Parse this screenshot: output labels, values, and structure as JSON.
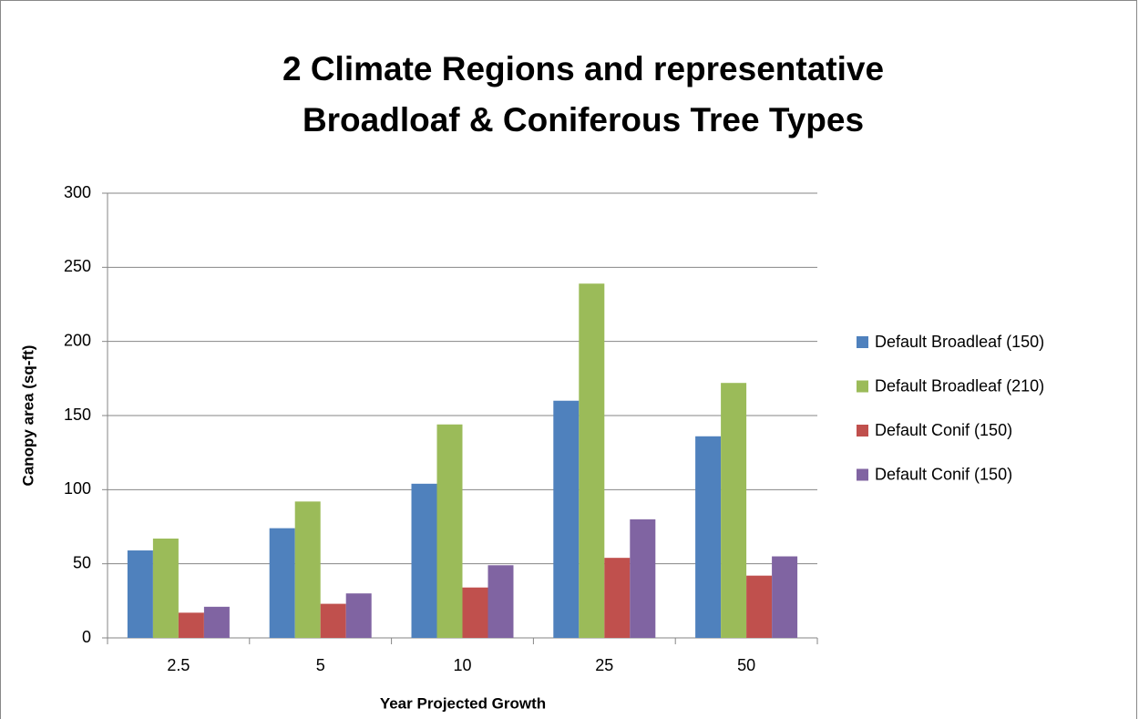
{
  "chart_data": {
    "type": "bar",
    "title": "2 Climate Regions and representative Broadloaf & Coniferous Tree Types",
    "x_label": "Year Projected Growth",
    "y_label": "Canopy area (sq-ft)",
    "categories": [
      "2.5",
      "5",
      "10",
      "25",
      "50"
    ],
    "series": [
      {
        "name": "Default Broadleaf (150)",
        "color": "#4f81bd",
        "values": [
          59,
          74,
          104,
          160,
          136
        ]
      },
      {
        "name": "Default Broadleaf (210)",
        "color": "#9bbb59",
        "values": [
          67,
          92,
          144,
          239,
          172
        ]
      },
      {
        "name": "Default Conif (150)",
        "color": "#c0504d",
        "values": [
          17,
          23,
          34,
          54,
          42
        ]
      },
      {
        "name": "Default Conif (150)",
        "color": "#8064a2",
        "values": [
          21,
          30,
          49,
          80,
          55
        ]
      }
    ],
    "ylim": [
      0,
      300
    ],
    "yticks": [
      0,
      50,
      100,
      150,
      200,
      250,
      300
    ],
    "grid": true,
    "legend": "right"
  }
}
